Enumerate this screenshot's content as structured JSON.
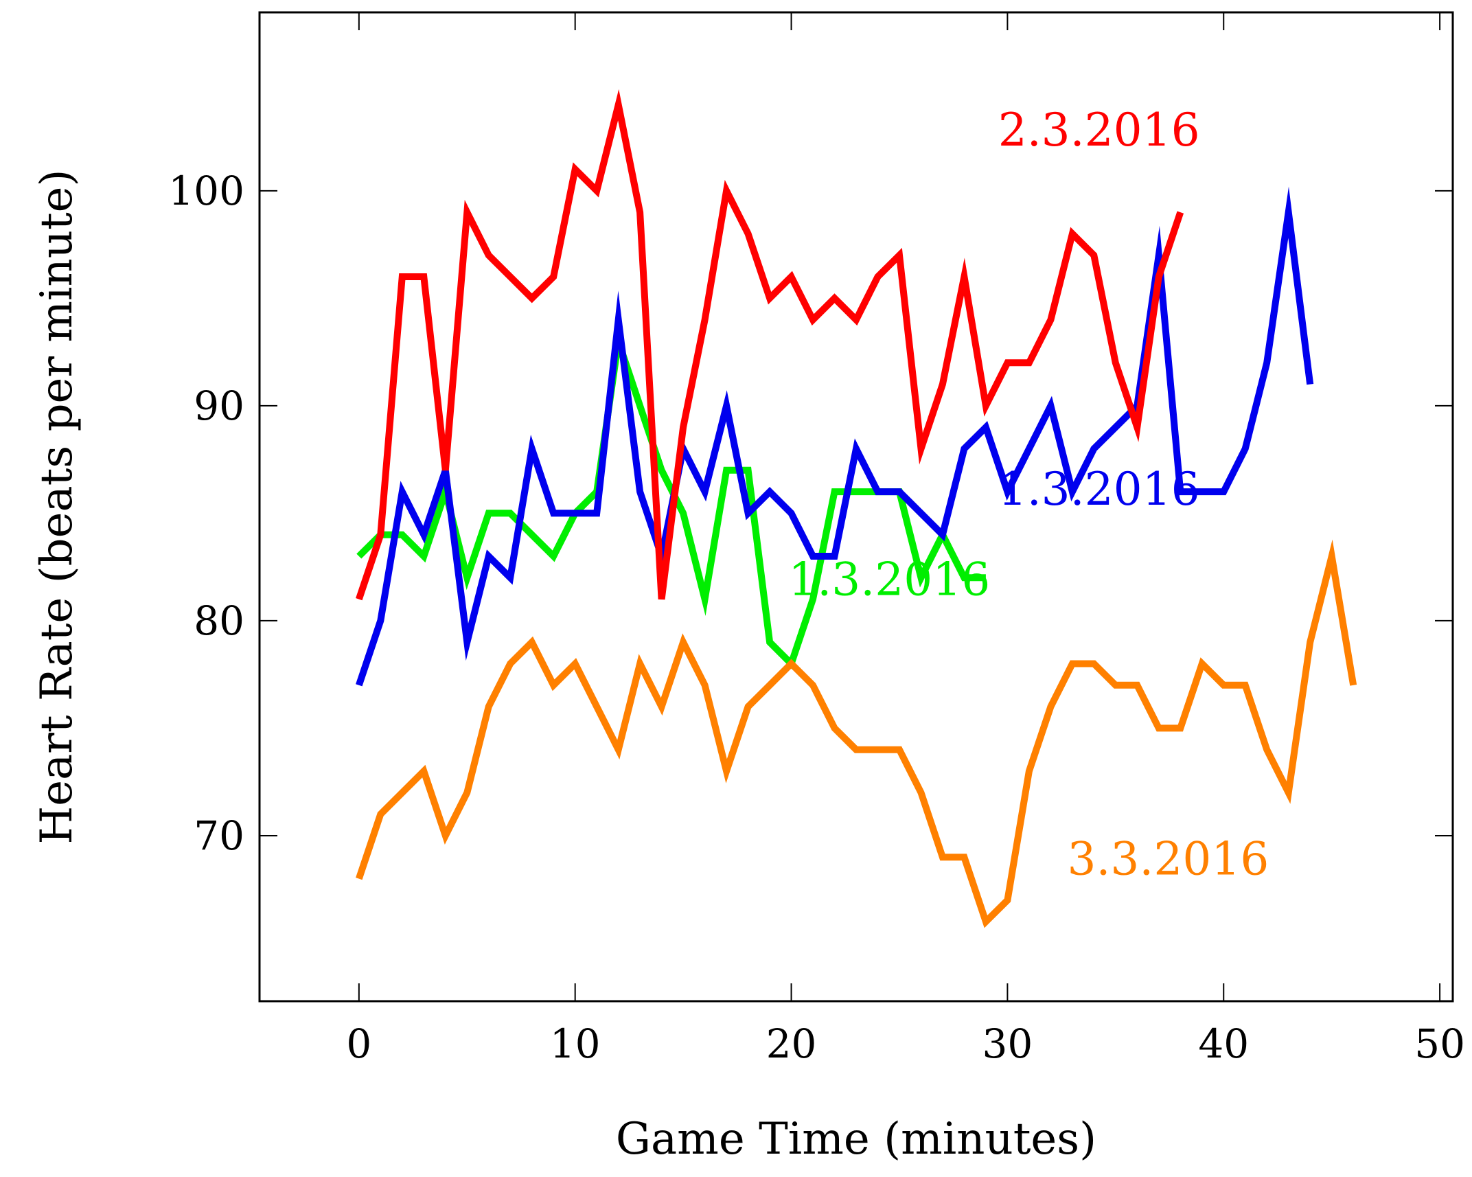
{
  "chart_data": {
    "type": "line",
    "xlabel": "Game Time (minutes)",
    "ylabel": "Heart Rate (beats per minute)",
    "xlim": [
      -4.6,
      50.6
    ],
    "ylim": [
      62.3,
      108.3
    ],
    "xticks": [
      0,
      10,
      20,
      30,
      40,
      50
    ],
    "yticks": [
      70,
      80,
      90,
      100
    ],
    "grid": false,
    "series": [
      {
        "name": "1.3.2016",
        "color": "#00ee00",
        "label_anchor": [
          29.2,
          81.2
        ],
        "x": [
          0,
          1,
          2,
          3,
          4,
          5,
          6,
          7,
          8,
          9,
          10,
          11,
          12,
          13,
          14,
          15,
          16,
          17,
          18,
          19,
          20,
          21,
          22,
          23,
          24,
          25,
          26,
          27,
          28,
          29
        ],
        "values": [
          83,
          84,
          84,
          83,
          86,
          82,
          85,
          85,
          84,
          83,
          85,
          86,
          93,
          90,
          87,
          85,
          81,
          87,
          87,
          79,
          78,
          81,
          86,
          86,
          86,
          86,
          82,
          84,
          82,
          82
        ]
      },
      {
        "name": "1.3.2016",
        "color": "#0000ee",
        "label_anchor": [
          38.9,
          85.4
        ],
        "x": [
          0,
          1,
          2,
          3,
          4,
          5,
          6,
          7,
          8,
          9,
          10,
          11,
          12,
          13,
          14,
          15,
          16,
          17,
          18,
          19,
          20,
          21,
          22,
          23,
          24,
          25,
          26,
          27,
          28,
          29,
          30,
          31,
          32,
          33,
          34,
          35,
          36,
          37,
          38,
          39,
          40,
          41,
          42,
          43,
          44
        ],
        "values": [
          77,
          80,
          86,
          84,
          87,
          79,
          83,
          82,
          88,
          85,
          85,
          85,
          94,
          86,
          83,
          88,
          86,
          90,
          85,
          86,
          85,
          83,
          83,
          88,
          86,
          86,
          85,
          84,
          88,
          89,
          86,
          88,
          90,
          86,
          88,
          89,
          90,
          97,
          86,
          86,
          86,
          88,
          92,
          99,
          91
        ]
      },
      {
        "name": "2.3.2016",
        "color": "#ff0000",
        "label_anchor": [
          38.9,
          102.1
        ],
        "x": [
          0,
          1,
          2,
          3,
          4,
          5,
          6,
          7,
          8,
          9,
          10,
          11,
          12,
          13,
          14,
          15,
          16,
          17,
          18,
          19,
          20,
          21,
          22,
          23,
          24,
          25,
          26,
          27,
          28,
          29,
          30,
          31,
          32,
          33,
          34,
          35,
          36,
          37,
          38
        ],
        "values": [
          81,
          84,
          96,
          96,
          87,
          99,
          97,
          96,
          95,
          96,
          101,
          100,
          104,
          99,
          81,
          89,
          94,
          100,
          98,
          95,
          96,
          94,
          95,
          94,
          96,
          97,
          88,
          91,
          96,
          90,
          92,
          92,
          94,
          98,
          97,
          92,
          89,
          96,
          99
        ]
      },
      {
        "name": "3.3.2016",
        "color": "#ff8000",
        "label_anchor": [
          42.1,
          68.2
        ],
        "x": [
          0,
          1,
          2,
          3,
          4,
          5,
          6,
          7,
          8,
          9,
          10,
          11,
          12,
          13,
          14,
          15,
          16,
          17,
          18,
          19,
          20,
          21,
          22,
          23,
          24,
          25,
          26,
          27,
          28,
          29,
          30,
          31,
          32,
          33,
          34,
          35,
          36,
          37,
          38,
          39,
          40,
          41,
          42,
          43,
          44,
          45,
          46
        ],
        "values": [
          68,
          71,
          72,
          73,
          70,
          72,
          76,
          78,
          79,
          77,
          78,
          76,
          74,
          78,
          76,
          79,
          77,
          73,
          76,
          77,
          78,
          77,
          75,
          74,
          74,
          74,
          72,
          69,
          69,
          66,
          67,
          73,
          76,
          78,
          78,
          77,
          77,
          75,
          75,
          78,
          77,
          77,
          74,
          72,
          79,
          83,
          77
        ]
      }
    ]
  }
}
